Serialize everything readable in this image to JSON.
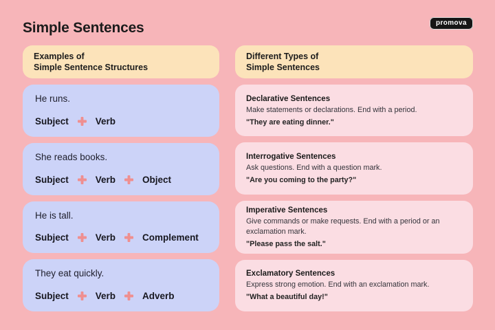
{
  "page": {
    "title": "Simple Sentences",
    "brand": "promova"
  },
  "examples": {
    "header_line1": "Examples of",
    "header_line2": "Simple Sentence Structures",
    "cards": [
      {
        "sentence": "He runs.",
        "parts": [
          "Subject",
          "Verb"
        ]
      },
      {
        "sentence": "She reads books.",
        "parts": [
          "Subject",
          "Verb",
          "Object"
        ]
      },
      {
        "sentence": "He is tall.",
        "parts": [
          "Subject",
          "Verb",
          "Complement"
        ]
      },
      {
        "sentence": "They eat quickly.",
        "parts": [
          "Subject",
          "Verb",
          "Adverb"
        ]
      }
    ]
  },
  "types": {
    "header_line1": "Different Types of",
    "header_line2": "Simple Sentences",
    "cards": [
      {
        "title": "Declarative Sentences",
        "description": "Make statements or declarations. End with a period.",
        "example": "\"They are eating dinner.\""
      },
      {
        "title": "Interrogative Sentences",
        "description": "Ask questions. End with a question mark.",
        "example": "\"Are you coming to the party?\""
      },
      {
        "title": "Imperative Sentences",
        "description": "Give commands or make requests. End with a period or an exclamation mark.",
        "example": "\"Please pass the salt.\""
      },
      {
        "title": "Exclamatory Sentences",
        "description": "Express strong emotion. End with an exclamation mark.",
        "example": "\"What a beautiful day!\""
      }
    ]
  },
  "icons": {
    "parts_separator": "plus-icon"
  },
  "colors": {
    "background": "#f7b5b9",
    "header_card": "#fce3ba",
    "example_card": "#ccd3f8",
    "type_card": "#fbdde3",
    "plus": "#ef8f90",
    "text": "#1c1c1c",
    "badge_bg": "#161616",
    "badge_text": "#ffffff"
  }
}
